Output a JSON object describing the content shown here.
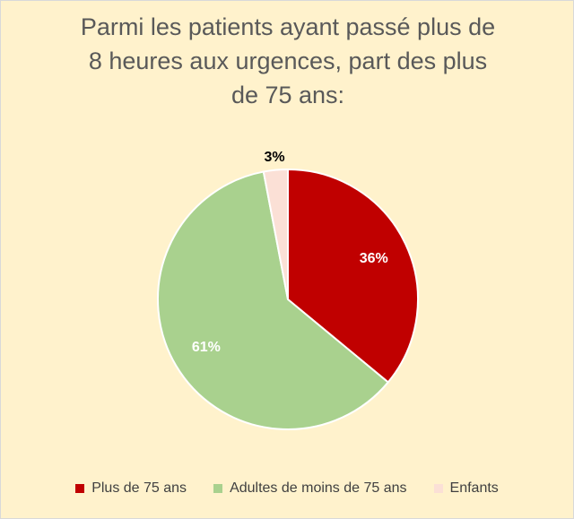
{
  "chart_data": {
    "type": "pie",
    "title_lines": [
      "Parmi les patients ayant passé plus de",
      "8 heures aux urgences, part des plus",
      "de 75 ans:"
    ],
    "categories": [
      "Plus de 75 ans",
      "Adultes de moins de 75 ans",
      "Enfants"
    ],
    "values": [
      36,
      61,
      3
    ],
    "value_labels": [
      "36%",
      "61%",
      "3%"
    ],
    "colors": [
      "#C00000",
      "#A9D18E",
      "#FBE0D6"
    ],
    "label_colors": [
      "#FFFFFF",
      "#FFFFFF",
      "#000000"
    ],
    "legend_position": "bottom",
    "background": "#FFF2CC"
  }
}
